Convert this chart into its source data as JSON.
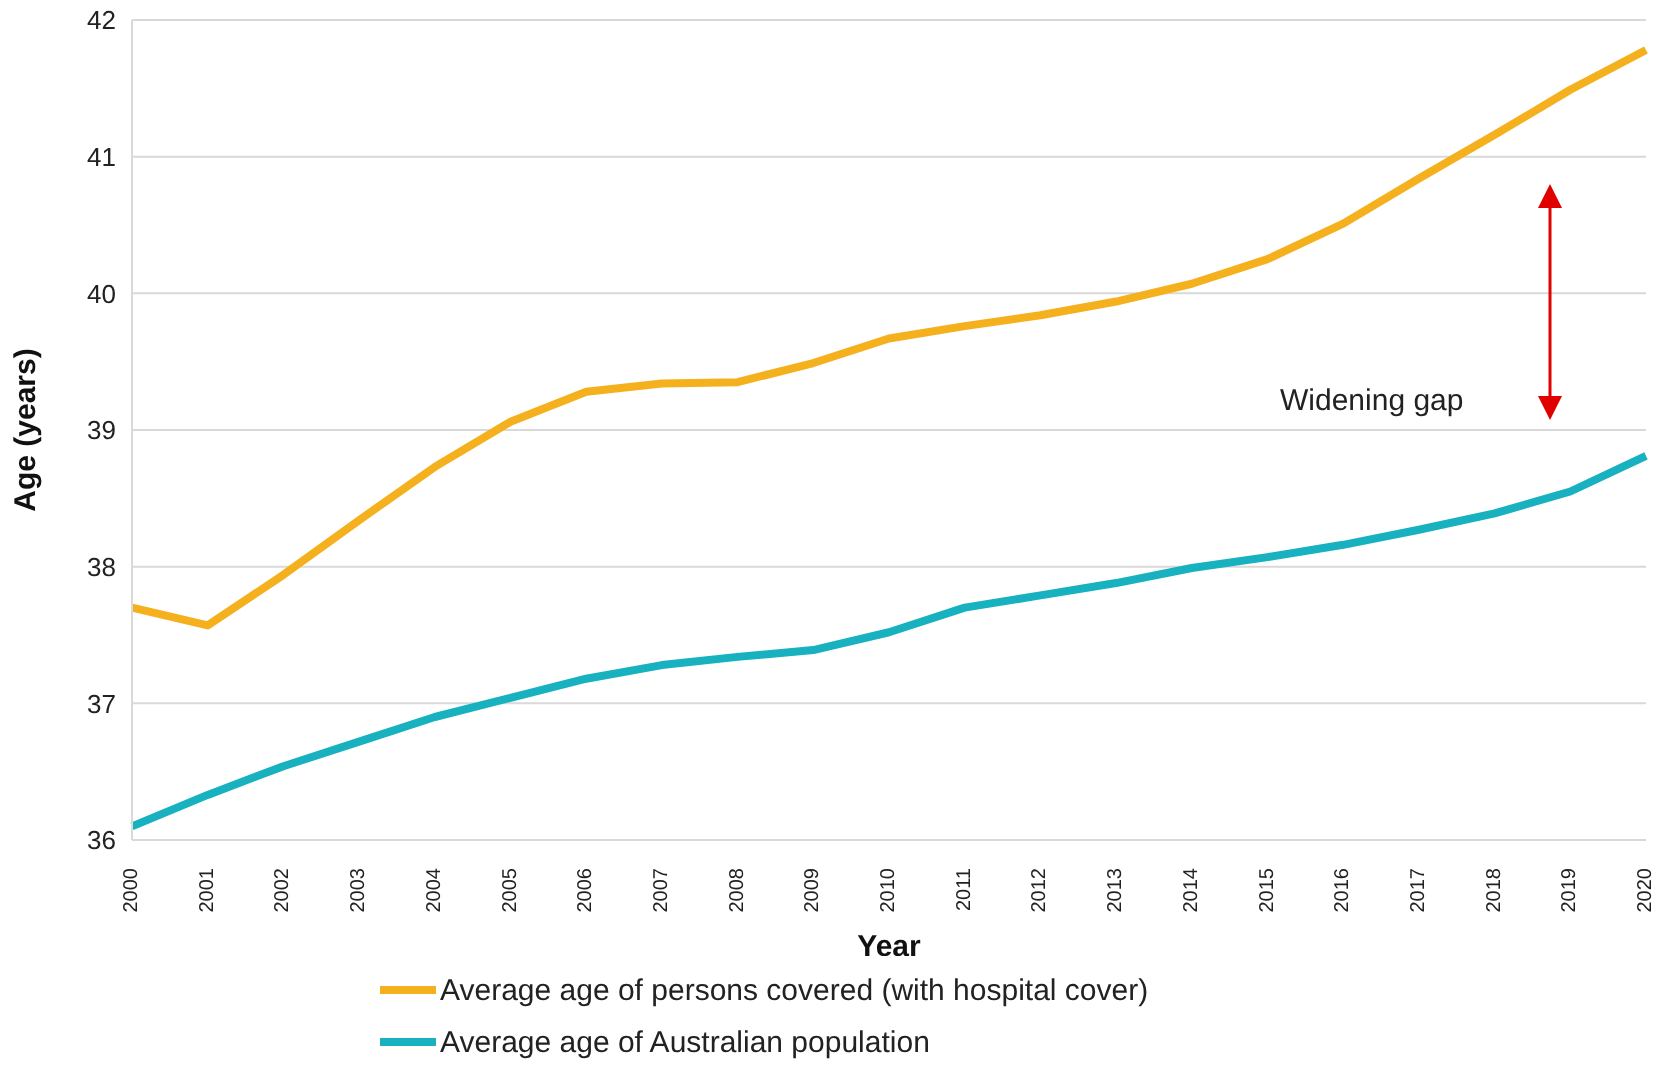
{
  "chart_data": {
    "type": "line",
    "xlabel": "Year",
    "ylabel": "Age (years)",
    "categories": [
      "2000",
      "2001",
      "2002",
      "2003",
      "2004",
      "2005",
      "2006",
      "2007",
      "2008",
      "2009",
      "2010",
      "2011",
      "2012",
      "2013",
      "2014",
      "2015",
      "2016",
      "2017",
      "2018",
      "2019",
      "2020"
    ],
    "series": [
      {
        "name": "Average age of persons covered (with hospital cover)",
        "color": "#f5b01e",
        "values": [
          37.7,
          37.57,
          37.94,
          38.34,
          38.73,
          39.06,
          39.28,
          39.34,
          39.35,
          39.49,
          39.67,
          39.76,
          39.84,
          39.94,
          40.07,
          40.25,
          40.51,
          40.84,
          41.16,
          41.49,
          41.78
        ]
      },
      {
        "name": "Average age of Australian population",
        "color": "#17b1bf",
        "values": [
          36.1,
          36.33,
          36.54,
          36.72,
          36.9,
          37.04,
          37.18,
          37.28,
          37.34,
          37.39,
          37.52,
          37.7,
          37.79,
          37.88,
          37.99,
          38.07,
          38.16,
          38.27,
          38.39,
          38.55,
          38.81
        ]
      }
    ],
    "ylim": [
      36,
      42
    ],
    "yticks": [
      36,
      37,
      38,
      39,
      40,
      41,
      42
    ],
    "grid": "y",
    "legend": "bottom",
    "marker": "none",
    "line_style": "solid",
    "annotations": [
      "Widening gap"
    ]
  }
}
